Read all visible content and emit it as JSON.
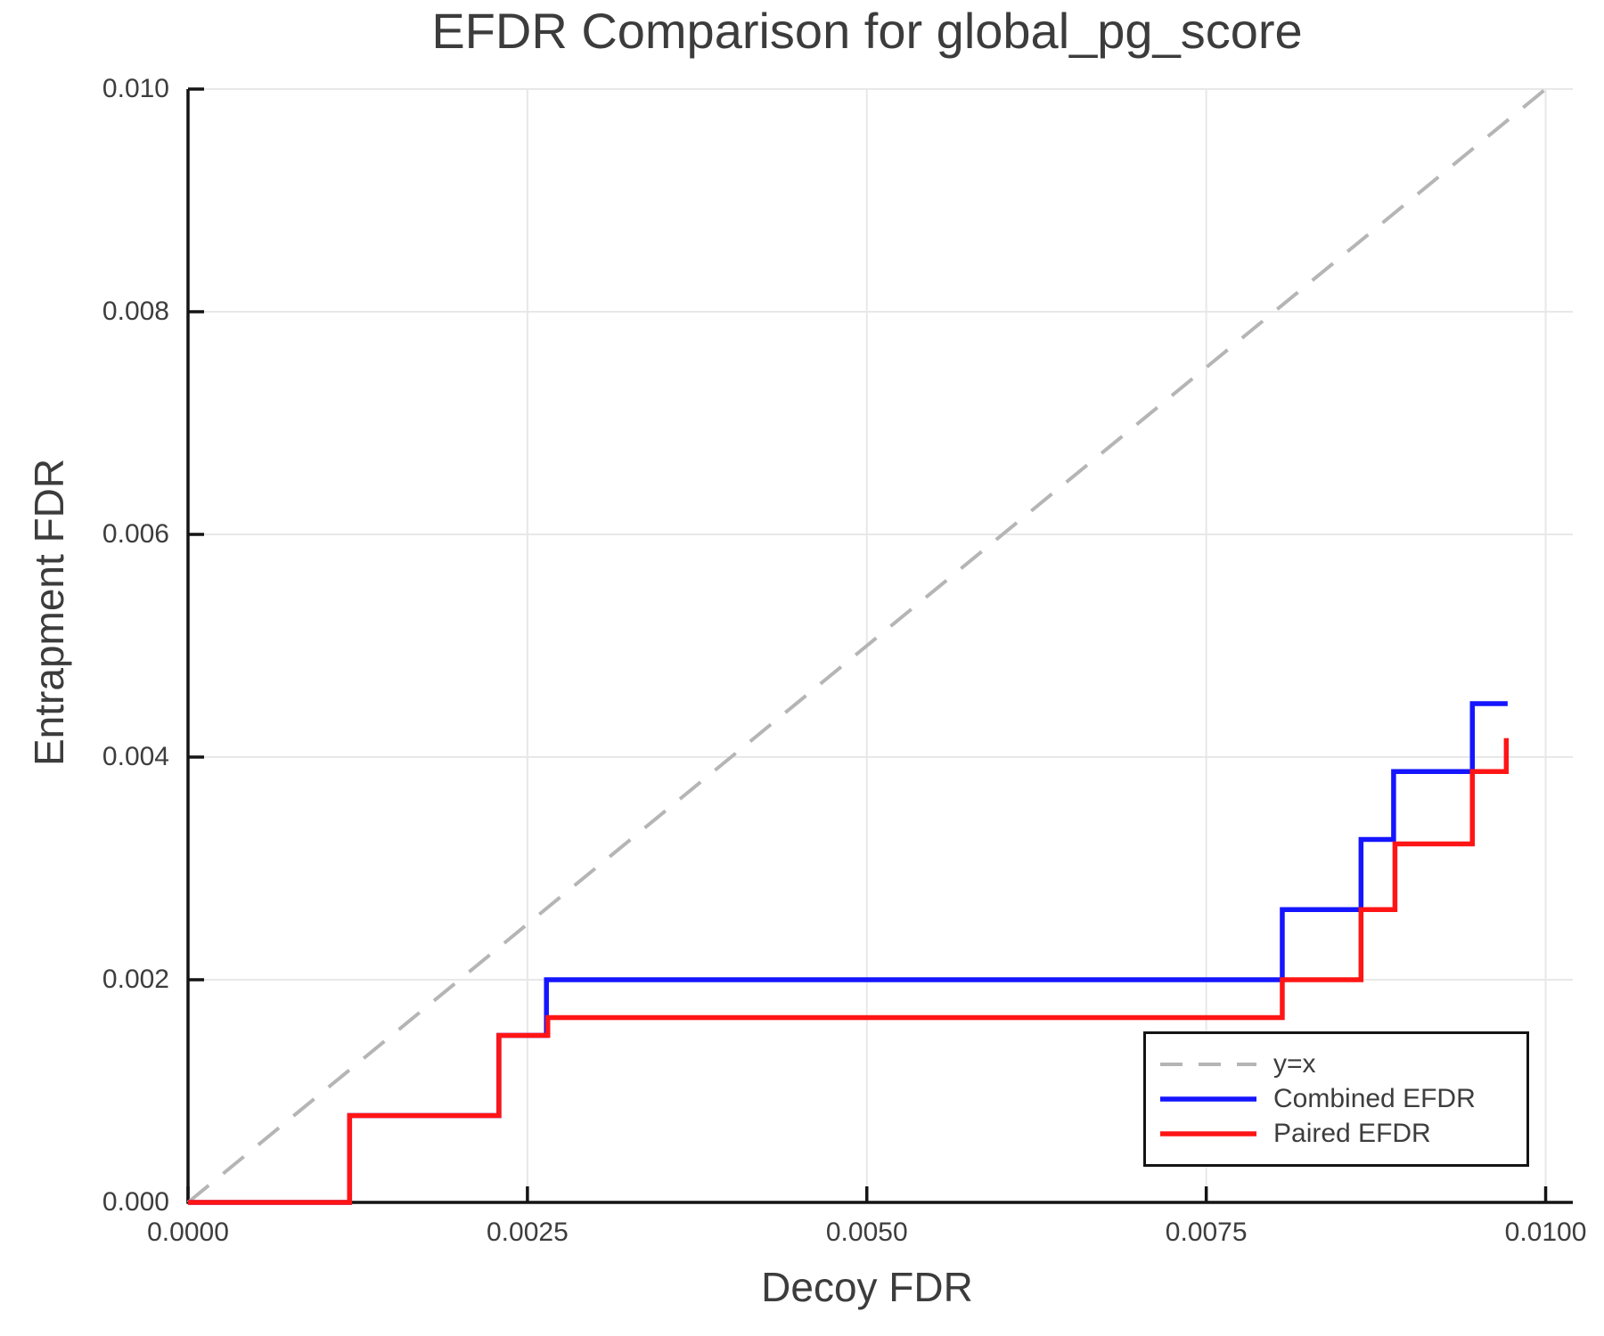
{
  "title": "EFDR Comparison for global_pg_score",
  "colors": {
    "blue": "#1515ff",
    "red": "#ff1515",
    "dashed_gray": "#b5b5b5",
    "gridline": "#e8e8e8",
    "spine": "#141414",
    "text": "#3d3d3d"
  },
  "chart_data": {
    "type": "line",
    "title": "EFDR Comparison for global_pg_score",
    "xlabel": "Decoy FDR",
    "ylabel": "Entrapment FDR",
    "xlim": [
      0,
      0.0102
    ],
    "ylim": [
      0,
      0.01
    ],
    "grid": true,
    "x_ticks": [
      0,
      0.0025,
      0.005,
      0.0075,
      0.01
    ],
    "x_tick_labels": [
      "0.0000",
      "0.0025",
      "0.0050",
      "0.0075",
      "0.0100"
    ],
    "y_ticks": [
      0,
      0.002,
      0.004,
      0.006,
      0.008,
      0.01
    ],
    "y_tick_labels": [
      "0.000",
      "0.002",
      "0.004",
      "0.006",
      "0.008",
      "0.010"
    ],
    "legend": {
      "position": "lower right",
      "entries": [
        "y=x",
        "Combined EFDR",
        "Paired EFDR"
      ]
    },
    "series": [
      {
        "name": "y=x",
        "style": "dashed",
        "color": "#b5b5b5",
        "points": [
          [
            0,
            0
          ],
          [
            0.01,
            0.01
          ]
        ]
      },
      {
        "name": "Combined EFDR",
        "style": "solid",
        "color": "#1515ff",
        "points": [
          [
            0,
            0
          ],
          [
            0.00119,
            0
          ],
          [
            0.00119,
            0.00078
          ],
          [
            0.00229,
            0.00078
          ],
          [
            0.00229,
            0.0015
          ],
          [
            0.00264,
            0.0015
          ],
          [
            0.00264,
            0.002
          ],
          [
            0.00806,
            0.002
          ],
          [
            0.00806,
            0.00263
          ],
          [
            0.00864,
            0.00263
          ],
          [
            0.00864,
            0.00326
          ],
          [
            0.00888,
            0.00326
          ],
          [
            0.00888,
            0.00387
          ],
          [
            0.00946,
            0.00387
          ],
          [
            0.00946,
            0.00448
          ],
          [
            0.00972,
            0.00448
          ]
        ]
      },
      {
        "name": "Paired EFDR",
        "style": "solid",
        "color": "#ff1515",
        "points": [
          [
            0,
            0
          ],
          [
            0.00119,
            0
          ],
          [
            0.00119,
            0.00078
          ],
          [
            0.00229,
            0.00078
          ],
          [
            0.00229,
            0.0015
          ],
          [
            0.00265,
            0.0015
          ],
          [
            0.00265,
            0.00166
          ],
          [
            0.00806,
            0.00166
          ],
          [
            0.00806,
            0.002
          ],
          [
            0.00864,
            0.002
          ],
          [
            0.00864,
            0.00263
          ],
          [
            0.00889,
            0.00263
          ],
          [
            0.00889,
            0.00322
          ],
          [
            0.00946,
            0.00322
          ],
          [
            0.00946,
            0.00387
          ],
          [
            0.00971,
            0.00387
          ],
          [
            0.00971,
            0.00417
          ]
        ]
      }
    ]
  }
}
